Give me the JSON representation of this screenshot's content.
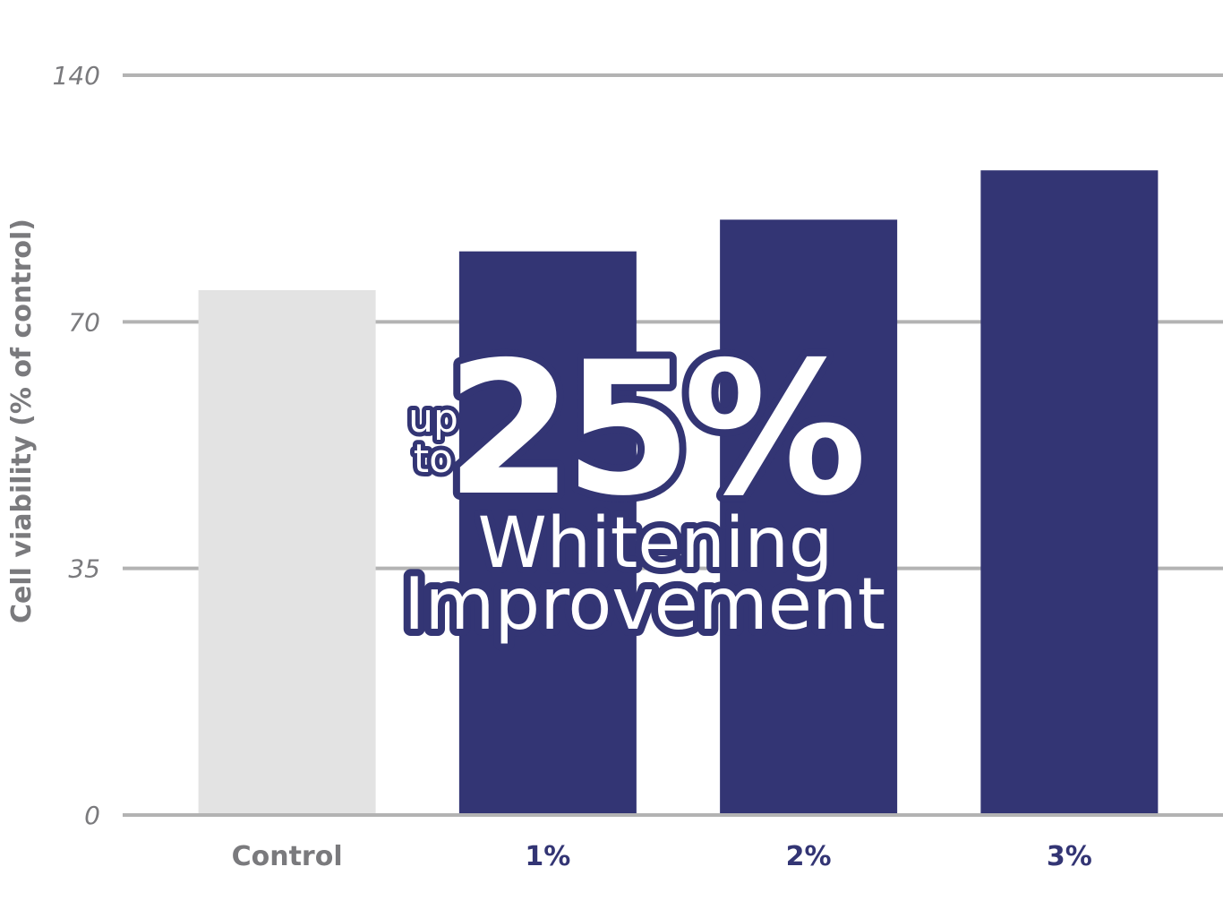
{
  "chart_data": {
    "type": "bar",
    "y_label": "Cell viability (% of control)",
    "categories": [
      "Control",
      "1%",
      "2%",
      "3%"
    ],
    "values": [
      79,
      90,
      99,
      113
    ],
    "colors": [
      "#e3e3e3",
      "#333574",
      "#333574",
      "#333574"
    ],
    "category_label_colors": [
      "#7a7a7d",
      "#333574",
      "#333574",
      "#333574"
    ],
    "ylim": [
      0,
      140
    ],
    "yticks": [
      0,
      35,
      70,
      140
    ],
    "grid": true,
    "annotation": {
      "prefix": [
        "up",
        "to"
      ],
      "headline": "25%",
      "lines": [
        "Whitening",
        "Improvement"
      ]
    }
  }
}
